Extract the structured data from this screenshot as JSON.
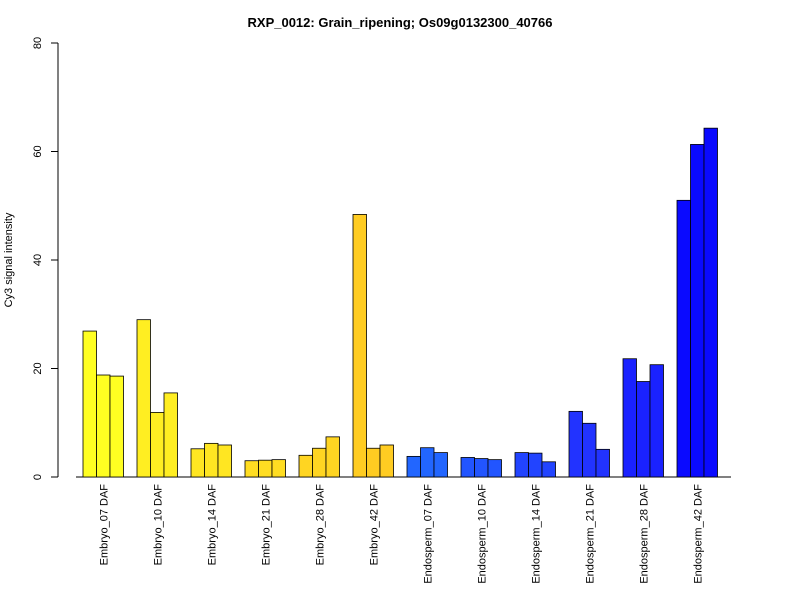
{
  "chart_data": {
    "type": "bar",
    "title": "RXP_0012: Grain_ripening; Os09g0132300_40766",
    "xlabel": "",
    "ylabel": "Cy3 signal intensity",
    "ylim": [
      0,
      80
    ],
    "yticks": [
      0,
      20,
      40,
      60,
      80
    ],
    "grid": false,
    "legend": "none",
    "bars_per_category": 3,
    "categories": [
      "Embryo_07 DAF",
      "Embryo_10 DAF",
      "Embryo_14 DAF",
      "Embryo_21 DAF",
      "Embryo_28 DAF",
      "Embryo_42 DAF",
      "Endosperm_07 DAF",
      "Endosperm_10 DAF",
      "Endosperm_14 DAF",
      "Endosperm_21 DAF",
      "Endosperm_28 DAF",
      "Endosperm_42 DAF"
    ],
    "values": [
      [
        26.9,
        18.8,
        18.6
      ],
      [
        29.0,
        11.9,
        15.5
      ],
      [
        5.2,
        6.2,
        5.9
      ],
      [
        3.0,
        3.1,
        3.2
      ],
      [
        4.0,
        5.3,
        7.4
      ],
      [
        48.4,
        5.3,
        5.9
      ],
      [
        3.8,
        5.4,
        4.5
      ],
      [
        3.6,
        3.4,
        3.2
      ],
      [
        4.5,
        4.4,
        2.8
      ],
      [
        12.1,
        9.9,
        5.1
      ],
      [
        21.8,
        17.6,
        20.7
      ],
      [
        51.0,
        61.3,
        64.3
      ]
    ],
    "colors": [
      "#ffff22",
      "#ffee22",
      "#ffe622",
      "#ffdd22",
      "#ffd522",
      "#ffcc22",
      "#2266ff",
      "#2255ff",
      "#2244ff",
      "#2233ff",
      "#1a22ff",
      "#0a0aff"
    ]
  }
}
